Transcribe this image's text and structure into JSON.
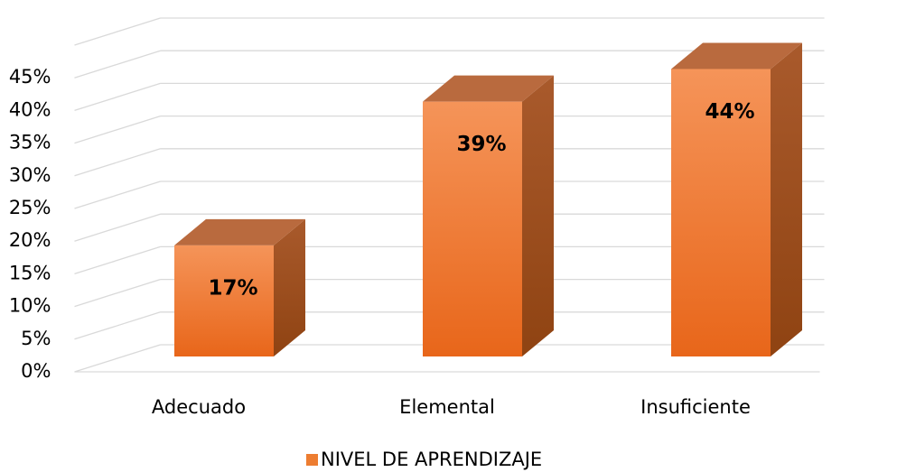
{
  "chart_data": {
    "type": "bar3d",
    "categories": [
      "Adecuado",
      "Elemental",
      "Insuficiente"
    ],
    "series": [
      {
        "name": "NIVEL DE APRENDIZAJE",
        "color": "#ed7d31",
        "values": [
          17,
          39,
          44
        ],
        "value_labels": [
          "17%",
          "39%",
          "44%"
        ]
      }
    ],
    "ylim": [
      0,
      50
    ],
    "yticks": [
      {
        "value": 0,
        "label": "0%"
      },
      {
        "value": 5,
        "label": "5%"
      },
      {
        "value": 10,
        "label": "10%"
      },
      {
        "value": 15,
        "label": "15%"
      },
      {
        "value": 20,
        "label": "20%"
      },
      {
        "value": 25,
        "label": "25%"
      },
      {
        "value": 30,
        "label": "30%"
      },
      {
        "value": 35,
        "label": "35%"
      },
      {
        "value": 40,
        "label": "40%"
      },
      {
        "value": 45,
        "label": "45%"
      }
    ],
    "grid": true,
    "legend": "bottom"
  }
}
